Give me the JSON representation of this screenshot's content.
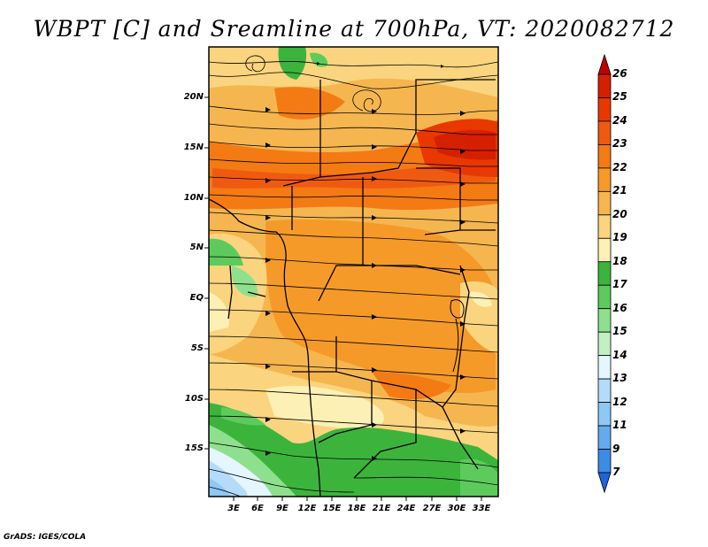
{
  "title": "WBPT [C] and Sreamline at 700hPa, VT: 2020082712",
  "credit": "GrADS: IGES/COLA",
  "map": {
    "lat_labels": [
      "20N",
      "15N",
      "10N",
      "5N",
      "EQ",
      "5S",
      "10S",
      "15S"
    ],
    "lon_labels": [
      "3E",
      "6E",
      "9E",
      "12E",
      "15E",
      "18E",
      "21E",
      "24E",
      "27E",
      "30E",
      "33E"
    ]
  },
  "colorbar": {
    "labels": [
      "26",
      "25",
      "24",
      "23",
      "22",
      "21",
      "20",
      "19",
      "18",
      "17",
      "16",
      "15",
      "14",
      "13",
      "12",
      "11",
      "9",
      "7"
    ],
    "colors": [
      "#c00000",
      "#d52000",
      "#e83800",
      "#f05a10",
      "#f47a14",
      "#f59a28",
      "#f5b650",
      "#fad47e",
      "#fdf0b4",
      "#3cb43c",
      "#5ccb5c",
      "#8ee08e",
      "#c2f0c2",
      "#e4f6ff",
      "#b4dcfa",
      "#8ec8f5",
      "#64aaf0",
      "#3c8ce6",
      "#1e64dc"
    ]
  }
}
